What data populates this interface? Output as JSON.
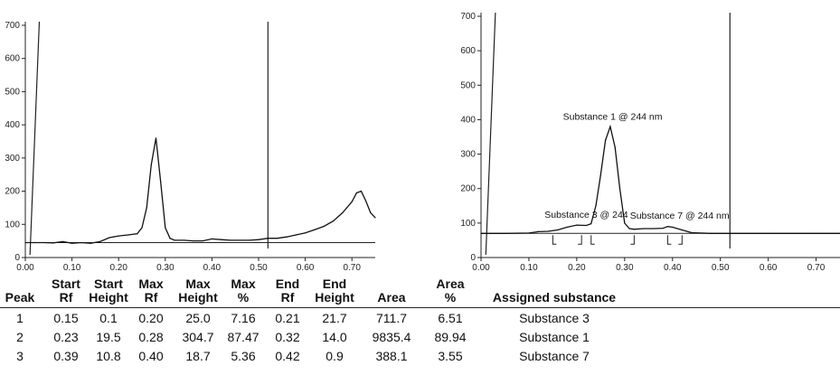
{
  "chart_data": [
    {
      "type": "line",
      "xlim": [
        0,
        0.75
      ],
      "ylim": [
        0,
        700
      ],
      "x_ticks": [
        "0.00",
        "0.10",
        "0.20",
        "0.30",
        "0.40",
        "0.50",
        "0.60",
        "0.70"
      ],
      "y_ticks": [
        "0",
        "100",
        "200",
        "300",
        "400",
        "500",
        "600",
        "700"
      ],
      "series": [
        {
          "x": [
            0.0,
            0.02,
            0.04,
            0.06,
            0.08,
            0.1,
            0.12,
            0.14,
            0.16,
            0.18,
            0.2,
            0.22,
            0.24,
            0.25,
            0.26,
            0.27,
            0.28,
            0.29,
            0.3,
            0.31,
            0.32,
            0.34,
            0.36,
            0.38,
            0.4,
            0.42,
            0.44,
            0.46,
            0.48,
            0.5,
            0.52,
            0.54,
            0.56,
            0.58,
            0.6,
            0.62,
            0.64,
            0.66,
            0.68,
            0.7,
            0.71,
            0.72,
            0.73,
            0.74,
            0.75
          ],
          "y": [
            45,
            45,
            45,
            44,
            48,
            43,
            45,
            43,
            48,
            60,
            65,
            68,
            72,
            90,
            150,
            280,
            360,
            230,
            90,
            58,
            52,
            52,
            50,
            50,
            56,
            54,
            52,
            52,
            52,
            54,
            58,
            58,
            62,
            68,
            74,
            84,
            94,
            110,
            135,
            168,
            195,
            200,
            170,
            135,
            120
          ]
        }
      ],
      "baseline_y": 45,
      "marker_x": 0.52
    },
    {
      "type": "line",
      "xlim": [
        0,
        0.75
      ],
      "ylim": [
        0,
        700
      ],
      "x_ticks": [
        "0.00",
        "0.10",
        "0.20",
        "0.30",
        "0.40",
        "0.50",
        "0.60",
        "0.70"
      ],
      "y_ticks": [
        "0",
        "100",
        "200",
        "300",
        "400",
        "500",
        "600",
        "700"
      ],
      "series": [
        {
          "x": [
            0.0,
            0.05,
            0.1,
            0.12,
            0.14,
            0.16,
            0.18,
            0.2,
            0.22,
            0.23,
            0.24,
            0.25,
            0.26,
            0.27,
            0.28,
            0.29,
            0.3,
            0.31,
            0.32,
            0.34,
            0.36,
            0.38,
            0.39,
            0.4,
            0.42,
            0.44,
            0.48,
            0.52,
            0.6,
            0.7,
            0.75
          ],
          "y": [
            70,
            70,
            71,
            75,
            76,
            80,
            88,
            94,
            93,
            98,
            150,
            240,
            340,
            380,
            320,
            200,
            100,
            84,
            82,
            84,
            84,
            85,
            90,
            88,
            80,
            72,
            70,
            70,
            70,
            70,
            70
          ]
        }
      ],
      "baseline_y": 70,
      "marker_x": 0.52,
      "annotations": [
        {
          "text": "Substance 1 @ 244 nm",
          "x": 0.275,
          "y": 400
        },
        {
          "text": "Substance 3 @ 244",
          "x": 0.22,
          "y": 115
        },
        {
          "text": "Substance 7 @ 244 nm",
          "x": 0.415,
          "y": 113
        }
      ],
      "peak_brackets": [
        [
          0.15,
          0.21
        ],
        [
          0.23,
          0.32
        ],
        [
          0.39,
          0.42
        ]
      ]
    }
  ],
  "table": {
    "headers": [
      [
        "",
        "Peak"
      ],
      [
        "Start",
        "Rf"
      ],
      [
        "Start",
        "Height"
      ],
      [
        "Max",
        "Rf"
      ],
      [
        "Max",
        "Height"
      ],
      [
        "Max",
        "%"
      ],
      [
        "End",
        "Rf"
      ],
      [
        "End",
        "Height"
      ],
      [
        "",
        "Area"
      ],
      [
        "Area",
        "%"
      ],
      [
        "",
        "Assigned substance"
      ]
    ],
    "rows": [
      [
        "1",
        "0.15",
        "0.1",
        "0.20",
        "25.0",
        "7.16",
        "0.21",
        "21.7",
        "711.7",
        "6.51",
        "Substance 3"
      ],
      [
        "2",
        "0.23",
        "19.5",
        "0.28",
        "304.7",
        "87.47",
        "0.32",
        "14.0",
        "9835.4",
        "89.94",
        "Substance 1"
      ],
      [
        "3",
        "0.39",
        "10.8",
        "0.40",
        "18.7",
        "5.36",
        "0.42",
        "0.9",
        "388.1",
        "3.55",
        "Substance 7"
      ]
    ]
  }
}
